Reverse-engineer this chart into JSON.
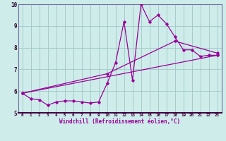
{
  "xlabel": "Windchill (Refroidissement éolien,°C)",
  "background_color": "#ceecea",
  "grid_color": "#a0c8c4",
  "line_color": "#990099",
  "spine_color": "#7070a0",
  "xlim": [
    -0.5,
    23.5
  ],
  "ylim": [
    5,
    10
  ],
  "yticks": [
    5,
    6,
    7,
    8,
    9,
    10
  ],
  "xticks": [
    0,
    1,
    2,
    3,
    4,
    5,
    6,
    7,
    8,
    9,
    10,
    11,
    12,
    13,
    14,
    15,
    16,
    17,
    18,
    19,
    20,
    21,
    22,
    23
  ],
  "series1_x": [
    0,
    1,
    2,
    3,
    4,
    5,
    6,
    7,
    8,
    9,
    10,
    11,
    12,
    13,
    14,
    15,
    16,
    17,
    18,
    19,
    20,
    21,
    22,
    23
  ],
  "series1_y": [
    5.9,
    5.65,
    5.6,
    5.35,
    5.5,
    5.55,
    5.55,
    5.5,
    5.45,
    5.5,
    6.35,
    7.3,
    9.2,
    6.5,
    10.0,
    9.2,
    9.5,
    9.1,
    8.5,
    7.9,
    7.9,
    7.6,
    7.65,
    7.65
  ],
  "series2_x": [
    0,
    23
  ],
  "series2_y": [
    5.9,
    7.65
  ],
  "series3_x": [
    0,
    10,
    18,
    23
  ],
  "series3_y": [
    5.9,
    6.8,
    8.3,
    7.75
  ]
}
